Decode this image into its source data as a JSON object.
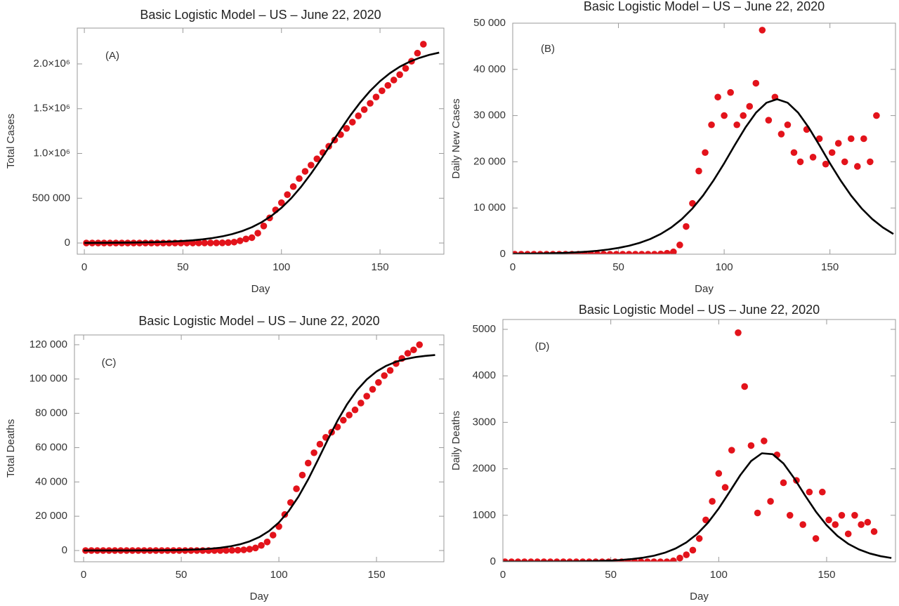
{
  "chart_data": [
    {
      "type": "scatter",
      "title": "Basic Logistic Model – US – June 22, 2020",
      "annotation": "(A)",
      "x_label": "Day",
      "y_label": "Total Cases",
      "xlim": [
        -3.6,
        182.4
      ],
      "ylim": [
        -125000,
        2400000
      ],
      "xticks": [
        0,
        50,
        100,
        150
      ],
      "yticks": [
        0,
        {
          "value": 500000,
          "label": "500 000"
        },
        {
          "value": 1000000,
          "label": "1.0×10⁶"
        },
        {
          "value": 1500000,
          "label": "1.5×10⁶"
        },
        {
          "value": 2000000,
          "label": "2.0×10⁶"
        }
      ],
      "grid": false,
      "series": [
        {
          "type": "scatter",
          "color": "#e3131b",
          "x": [
            1,
            4,
            7,
            10,
            13,
            16,
            19,
            22,
            25,
            28,
            31,
            34,
            37,
            40,
            43,
            46,
            49,
            52,
            55,
            58,
            61,
            64,
            67,
            70,
            73,
            76,
            79,
            82,
            85,
            88,
            91,
            94,
            97,
            100,
            103,
            106,
            109,
            112,
            115,
            118,
            121,
            124,
            127,
            130,
            133,
            136,
            139,
            142,
            145,
            148,
            151,
            154,
            157,
            160,
            163,
            166,
            169,
            172
          ],
          "values": [
            0,
            0,
            0,
            0,
            0,
            0,
            0,
            0,
            0,
            0,
            0,
            0,
            0,
            0,
            0,
            0,
            100,
            200,
            300,
            500,
            700,
            1000,
            1500,
            2000,
            5000,
            10000,
            25000,
            45000,
            60000,
            110000,
            190000,
            280000,
            370000,
            450000,
            540000,
            630000,
            720000,
            800000,
            870000,
            940000,
            1010000,
            1080000,
            1150000,
            1210000,
            1280000,
            1350000,
            1420000,
            1490000,
            1560000,
            1630000,
            1700000,
            1760000,
            1820000,
            1880000,
            1950000,
            2030000,
            2120000,
            2220000
          ]
        },
        {
          "type": "line",
          "color": "#000000",
          "x": [
            0,
            5,
            10,
            15,
            20,
            25,
            30,
            35,
            40,
            45,
            50,
            55,
            60,
            65,
            70,
            75,
            80,
            85,
            90,
            95,
            100,
            105,
            110,
            115,
            120,
            125,
            130,
            135,
            140,
            145,
            150,
            155,
            160,
            165,
            170,
            175,
            180
          ],
          "values": [
            1073,
            1456,
            1975,
            2680,
            3630,
            4920,
            6670,
            9050,
            12220,
            16590,
            22450,
            30350,
            40970,
            55150,
            74300,
            99500,
            132800,
            176400,
            232600,
            304300,
            393000,
            501000,
            629000,
            775000,
            933000,
            1100000,
            1266000,
            1426000,
            1571000,
            1699000,
            1807000,
            1896000,
            1968000,
            2024000,
            2067000,
            2101000,
            2126000
          ]
        }
      ]
    },
    {
      "type": "scatter",
      "title": "Basic Logistic Model – US – June 22, 2020",
      "annotation": "(B)",
      "x_label": "Day",
      "y_label": "Daily New Cases",
      "xlim": [
        0,
        181
      ],
      "ylim": [
        0,
        50000
      ],
      "xticks": [
        0,
        50,
        100,
        150
      ],
      "yticks": [
        0,
        {
          "value": 10000,
          "label": "10 000"
        },
        {
          "value": 20000,
          "label": "20 000"
        },
        {
          "value": 30000,
          "label": "30 000"
        },
        {
          "value": 40000,
          "label": "40 000"
        },
        {
          "value": 50000,
          "label": "50 000"
        }
      ],
      "grid": false,
      "series": [
        {
          "type": "scatter",
          "color": "#e3131b",
          "x": [
            1,
            4,
            7,
            10,
            13,
            16,
            19,
            22,
            25,
            28,
            31,
            34,
            37,
            40,
            43,
            46,
            49,
            52,
            55,
            58,
            61,
            64,
            67,
            70,
            73,
            76,
            79,
            82,
            85,
            88,
            91,
            94,
            97,
            100,
            103,
            106,
            109,
            112,
            115,
            118,
            121,
            124,
            127,
            130,
            133,
            136,
            139,
            142,
            145,
            148,
            151,
            154,
            157,
            160,
            163,
            166,
            169,
            172
          ],
          "values": [
            0,
            0,
            0,
            0,
            0,
            0,
            0,
            0,
            0,
            0,
            0,
            0,
            0,
            0,
            0,
            0,
            0,
            0,
            0,
            0,
            0,
            0,
            0,
            50,
            200,
            500,
            2000,
            6000,
            11000,
            18000,
            22000,
            28000,
            34000,
            30000,
            35000,
            28000,
            30000,
            32000,
            37000,
            48500,
            29000,
            34000,
            26000,
            28000,
            22000,
            20000,
            27000,
            21000,
            25000,
            19500,
            22000,
            24000,
            20000,
            25000,
            19000,
            25000,
            20000,
            30000
          ]
        },
        {
          "type": "line",
          "color": "#000000",
          "x": [
            0,
            5,
            10,
            15,
            20,
            25,
            30,
            35,
            40,
            45,
            50,
            55,
            60,
            65,
            70,
            75,
            80,
            85,
            90,
            95,
            100,
            105,
            110,
            115,
            120,
            125,
            130,
            135,
            140,
            145,
            150,
            155,
            160,
            165,
            170,
            175,
            180
          ],
          "values": [
            65,
            89,
            120,
            163,
            221,
            299,
            406,
            549,
            741,
            1004,
            1355,
            1826,
            2452,
            3279,
            4381,
            5800,
            7610,
            9900,
            12690,
            16000,
            19680,
            23610,
            27390,
            30610,
            32780,
            33550,
            32780,
            30610,
            27390,
            23610,
            19680,
            16000,
            12690,
            9900,
            7610,
            5800,
            4381
          ]
        }
      ]
    },
    {
      "type": "scatter",
      "title": "Basic Logistic Model – US – June 22, 2020",
      "annotation": "(C)",
      "x_label": "Day",
      "y_label": "Total Deaths",
      "xlim": [
        -4.7,
        184.5
      ],
      "ylim": [
        -6550,
        125700
      ],
      "xticks": [
        0,
        50,
        100,
        150
      ],
      "yticks": [
        0,
        {
          "value": 20000,
          "label": "20 000"
        },
        {
          "value": 40000,
          "label": "40 000"
        },
        {
          "value": 60000,
          "label": "60 000"
        },
        {
          "value": 80000,
          "label": "80 000"
        },
        {
          "value": 100000,
          "label": "100 000"
        },
        {
          "value": 120000,
          "label": "120 000"
        }
      ],
      "grid": false,
      "series": [
        {
          "type": "scatter",
          "color": "#e3131b",
          "x": [
            1,
            4,
            7,
            10,
            13,
            16,
            19,
            22,
            25,
            28,
            31,
            34,
            37,
            40,
            43,
            46,
            49,
            52,
            55,
            58,
            61,
            64,
            67,
            70,
            73,
            76,
            79,
            82,
            85,
            88,
            91,
            94,
            97,
            100,
            103,
            106,
            109,
            112,
            115,
            118,
            121,
            124,
            127,
            130,
            133,
            136,
            139,
            142,
            145,
            148,
            151,
            154,
            157,
            160,
            163,
            166,
            169,
            172
          ],
          "values": [
            0,
            0,
            0,
            0,
            0,
            0,
            0,
            0,
            0,
            0,
            0,
            0,
            0,
            0,
            0,
            0,
            0,
            0,
            0,
            0,
            0,
            0,
            0,
            20,
            50,
            100,
            200,
            400,
            800,
            1500,
            3000,
            5000,
            9000,
            14000,
            21000,
            28000,
            36000,
            44000,
            51000,
            57000,
            62000,
            66000,
            69000,
            72000,
            76000,
            79000,
            82000,
            86000,
            90000,
            94000,
            98000,
            102000,
            105000,
            109000,
            112000,
            115000,
            117000,
            120000
          ]
        },
        {
          "type": "line",
          "color": "#000000",
          "x": [
            0,
            5,
            10,
            15,
            20,
            25,
            30,
            35,
            40,
            45,
            50,
            55,
            60,
            65,
            70,
            75,
            80,
            85,
            90,
            95,
            100,
            105,
            110,
            115,
            120,
            125,
            130,
            135,
            140,
            145,
            150,
            155,
            160,
            165,
            170,
            175,
            180
          ],
          "values": [
            5.4,
            8.1,
            12.2,
            18.4,
            27.6,
            41.6,
            62.6,
            94,
            141.5,
            212.7,
            319.8,
            481,
            721,
            1082,
            1620,
            2421,
            3605,
            5336,
            7845,
            11410,
            16360,
            22950,
            31380,
            41490,
            52830,
            64500,
            75660,
            85440,
            93520,
            99770,
            104400,
            107730,
            110070,
            111670,
            112770,
            113500,
            114000
          ]
        }
      ]
    },
    {
      "type": "scatter",
      "title": "Basic Logistic Model – US – June 22, 2020",
      "annotation": "(D)",
      "x_label": "Day",
      "y_label": "Daily Deaths",
      "xlim": [
        0,
        181.9
      ],
      "ylim": [
        0,
        5212
      ],
      "xticks": [
        0,
        50,
        100,
        150
      ],
      "yticks": [
        0,
        1000,
        2000,
        3000,
        4000,
        5000
      ],
      "grid": false,
      "series": [
        {
          "type": "scatter",
          "color": "#e3131b",
          "x": [
            1,
            4,
            7,
            10,
            13,
            16,
            19,
            22,
            25,
            28,
            31,
            34,
            37,
            40,
            43,
            46,
            49,
            52,
            55,
            58,
            61,
            64,
            67,
            70,
            73,
            76,
            79,
            82,
            85,
            88,
            91,
            94,
            97,
            100,
            103,
            106,
            109,
            112,
            115,
            118,
            121,
            124,
            127,
            130,
            133,
            136,
            139,
            142,
            145,
            148,
            151,
            154,
            157,
            160,
            163,
            166,
            169,
            172
          ],
          "values": [
            0,
            0,
            0,
            0,
            0,
            0,
            0,
            0,
            0,
            0,
            0,
            0,
            0,
            0,
            0,
            0,
            0,
            0,
            0,
            0,
            0,
            0,
            0,
            0,
            0,
            0,
            20,
            80,
            150,
            250,
            500,
            900,
            1300,
            1900,
            1600,
            2400,
            4928,
            3770,
            2500,
            1050,
            2600,
            1300,
            2300,
            1700,
            1000,
            1750,
            800,
            1500,
            500,
            1500,
            900,
            800,
            1000,
            600,
            1000,
            800,
            850,
            650
          ]
        },
        {
          "type": "line",
          "color": "#000000",
          "x": [
            0,
            5,
            10,
            15,
            20,
            25,
            30,
            35,
            40,
            45,
            50,
            55,
            60,
            65,
            70,
            75,
            80,
            85,
            90,
            95,
            100,
            105,
            110,
            115,
            120,
            125,
            130,
            135,
            140,
            145,
            150,
            155,
            160,
            165,
            170,
            175,
            180
          ],
          "values": [
            0.44,
            0.66,
            1.0,
            1.5,
            2.26,
            3.4,
            5.1,
            7.7,
            11.5,
            17.3,
            26.1,
            39.2,
            58.9,
            88,
            130.5,
            193.7,
            285,
            415.8,
            597,
            839.7,
            1146,
            1501,
            1864,
            2167,
            2334,
            2314,
            2115,
            1794,
            1427,
            1080,
            786,
            556,
            385.6,
            264,
            178.6,
            120,
            80.8
          ]
        }
      ]
    }
  ]
}
